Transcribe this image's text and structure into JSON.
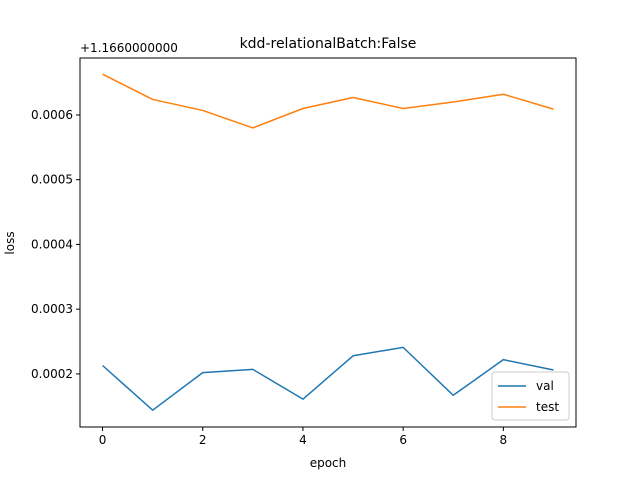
{
  "chart_data": {
    "type": "line",
    "title": "kdd-relationalBatch:False",
    "xlabel": "epoch",
    "ylabel": "loss",
    "offset_text": "+1.1660000000",
    "x": [
      0,
      1,
      2,
      3,
      4,
      5,
      6,
      7,
      8,
      9
    ],
    "xlim": [
      -0.45,
      9.45
    ],
    "ylim": [
      0.000118,
      0.000688
    ],
    "x_ticks": [
      0,
      2,
      4,
      6,
      8
    ],
    "x_tick_labels": [
      "0",
      "2",
      "4",
      "6",
      "8"
    ],
    "y_ticks": [
      0.0002,
      0.0003,
      0.0004,
      0.0005,
      0.0006
    ],
    "y_tick_labels": [
      "0.0002",
      "0.0003",
      "0.0004",
      "0.0005",
      "0.0006"
    ],
    "grid": false,
    "legend_position": "lower right",
    "series": [
      {
        "name": "val",
        "color": "#1f77b4",
        "values": [
          0.000213,
          0.000144,
          0.000202,
          0.000207,
          0.000161,
          0.000228,
          0.000241,
          0.000167,
          0.000222,
          0.000206
        ]
      },
      {
        "name": "test",
        "color": "#ff7f0e",
        "values": [
          0.000663,
          0.000624,
          0.000607,
          0.00058,
          0.00061,
          0.000627,
          0.00061,
          0.00062,
          0.000632,
          0.000609
        ]
      }
    ]
  }
}
